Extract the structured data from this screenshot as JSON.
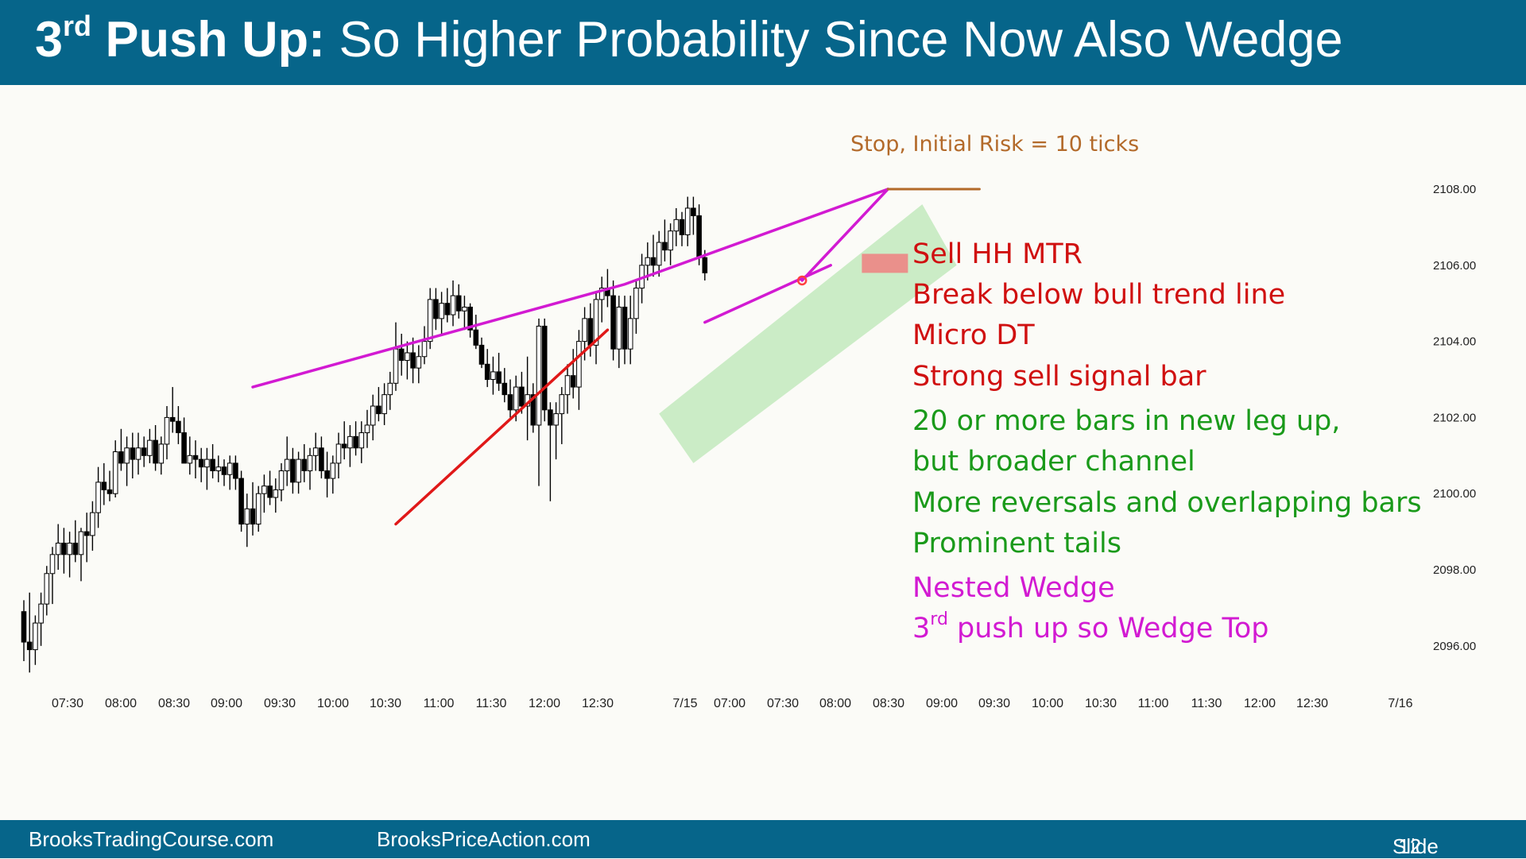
{
  "header": {
    "title_bold": "3",
    "title_bold_sup": "rd",
    "title_bold_rest": " Push Up:",
    "title_rest": " So Higher Probability Since Now Also Wedge"
  },
  "footer": {
    "left": "BrooksTradingCourse.com",
    "middle": "BrooksPriceAction.com",
    "slide_label": "Slide",
    "slide_number": "12"
  },
  "annotations": {
    "stop": "Stop, Initial Risk = 10 ticks",
    "red": [
      "Sell HH MTR",
      "Break below bull trend line",
      "Micro DT",
      "Strong sell signal bar"
    ],
    "green": [
      "20 or more bars in new leg up,",
      "but broader channel",
      "More reversals and overlapping bars",
      "Prominent tails"
    ],
    "magenta_1": "Nested Wedge",
    "magenta_2_pre": "3",
    "magenta_2_sup": "rd",
    "magenta_2_rest": " push up so Wedge Top"
  },
  "chart_data": {
    "type": "candlestick",
    "y_axis": {
      "ticks": [
        "2108.00",
        "2106.00",
        "2104.00",
        "2102.00",
        "2100.00",
        "2098.00",
        "2096.00"
      ],
      "range": [
        2094.5,
        2109.5
      ],
      "side": "right"
    },
    "x_axis": {
      "ticks": [
        "07:30",
        "08:00",
        "08:30",
        "09:00",
        "09:30",
        "10:00",
        "10:30",
        "11:00",
        "11:30",
        "12:00",
        "12:30",
        "7/15",
        "07:00",
        "07:30",
        "08:00",
        "08:30",
        "09:00",
        "09:30",
        "10:00",
        "10:30",
        "11:00",
        "11:30",
        "12:00",
        "12:30",
        "7/16"
      ]
    },
    "colors": {
      "wedge_line": "#d21ad2",
      "trend_line": "#e01818",
      "channel": "#b6e6b0",
      "stop_line": "#b36a2a",
      "signal_bar": "#f08080"
    },
    "candles": [
      [
        2096.9,
        2097.2,
        2095.6,
        2096.1
      ],
      [
        2096.1,
        2097.4,
        2095.3,
        2095.9
      ],
      [
        2095.9,
        2096.8,
        2095.5,
        2096.6
      ],
      [
        2096.6,
        2097.4,
        2096.0,
        2097.1
      ],
      [
        2097.1,
        2098.1,
        2096.8,
        2097.9
      ],
      [
        2097.9,
        2098.6,
        2097.1,
        2098.4
      ],
      [
        2098.4,
        2099.2,
        2098.0,
        2098.7
      ],
      [
        2098.7,
        2099.1,
        2097.9,
        2098.4
      ],
      [
        2098.4,
        2099.0,
        2097.8,
        2098.7
      ],
      [
        2098.7,
        2099.3,
        2098.2,
        2098.4
      ],
      [
        2098.4,
        2099.1,
        2097.7,
        2099.0
      ],
      [
        2099.0,
        2099.5,
        2098.2,
        2098.9
      ],
      [
        2098.9,
        2099.8,
        2098.5,
        2099.5
      ],
      [
        2099.5,
        2100.7,
        2099.1,
        2100.3
      ],
      [
        2100.3,
        2100.8,
        2099.7,
        2100.1
      ],
      [
        2100.1,
        2100.6,
        2099.8,
        2100.0
      ],
      [
        2100.0,
        2101.4,
        2099.9,
        2101.1
      ],
      [
        2101.1,
        2101.7,
        2100.6,
        2100.8
      ],
      [
        2100.8,
        2101.5,
        2100.2,
        2101.2
      ],
      [
        2101.2,
        2101.6,
        2100.4,
        2100.9
      ],
      [
        2100.9,
        2101.6,
        2100.5,
        2101.2
      ],
      [
        2101.2,
        2101.5,
        2100.7,
        2101.0
      ],
      [
        2101.0,
        2101.7,
        2100.8,
        2101.4
      ],
      [
        2101.4,
        2101.8,
        2100.6,
        2100.8
      ],
      [
        2100.8,
        2101.5,
        2100.5,
        2101.3
      ],
      [
        2101.3,
        2102.3,
        2100.9,
        2102.0
      ],
      [
        2102.0,
        2102.8,
        2101.6,
        2101.9
      ],
      [
        2101.9,
        2102.3,
        2101.3,
        2101.6
      ],
      [
        2101.6,
        2102.0,
        2100.9,
        2100.8
      ],
      [
        2100.8,
        2101.5,
        2100.5,
        2101.0
      ],
      [
        2101.0,
        2101.4,
        2100.4,
        2100.9
      ],
      [
        2100.9,
        2101.2,
        2100.3,
        2100.7
      ],
      [
        2100.7,
        2101.2,
        2100.1,
        2100.9
      ],
      [
        2100.9,
        2101.3,
        2100.4,
        2100.6
      ],
      [
        2100.6,
        2101.0,
        2100.3,
        2100.7
      ],
      [
        2100.7,
        2100.9,
        2100.2,
        2100.5
      ],
      [
        2100.5,
        2101.0,
        2100.1,
        2100.8
      ],
      [
        2100.8,
        2101.0,
        2100.1,
        2100.4
      ],
      [
        2100.4,
        2100.6,
        2099.0,
        2099.2
      ],
      [
        2099.2,
        2100.0,
        2098.6,
        2099.6
      ],
      [
        2099.6,
        2100.3,
        2098.9,
        2099.2
      ],
      [
        2099.2,
        2100.2,
        2099.0,
        2100.0
      ],
      [
        2100.0,
        2100.5,
        2099.5,
        2100.2
      ],
      [
        2100.2,
        2100.6,
        2099.7,
        2099.9
      ],
      [
        2099.9,
        2100.4,
        2099.5,
        2100.1
      ],
      [
        2100.1,
        2100.8,
        2099.8,
        2100.6
      ],
      [
        2100.6,
        2101.5,
        2100.2,
        2100.9
      ],
      [
        2100.9,
        2101.2,
        2100.0,
        2100.3
      ],
      [
        2100.3,
        2101.1,
        2100.0,
        2100.9
      ],
      [
        2100.9,
        2101.3,
        2100.3,
        2100.6
      ],
      [
        2100.6,
        2101.2,
        2100.1,
        2101.0
      ],
      [
        2101.0,
        2101.6,
        2100.6,
        2101.2
      ],
      [
        2101.2,
        2101.5,
        2100.4,
        2100.6
      ],
      [
        2100.6,
        2101.1,
        2099.9,
        2100.4
      ],
      [
        2100.4,
        2101.0,
        2100.0,
        2100.8
      ],
      [
        2100.8,
        2101.6,
        2100.4,
        2101.3
      ],
      [
        2101.3,
        2101.9,
        2100.9,
        2101.2
      ],
      [
        2101.2,
        2101.8,
        2100.7,
        2101.5
      ],
      [
        2101.5,
        2101.9,
        2101.0,
        2101.2
      ],
      [
        2101.2,
        2101.9,
        2100.8,
        2101.6
      ],
      [
        2101.6,
        2102.2,
        2101.2,
        2101.8
      ],
      [
        2101.8,
        2102.6,
        2101.4,
        2102.3
      ],
      [
        2102.3,
        2102.8,
        2101.9,
        2102.1
      ],
      [
        2102.1,
        2102.9,
        2101.8,
        2102.6
      ],
      [
        2102.6,
        2103.2,
        2102.2,
        2102.9
      ],
      [
        2102.9,
        2104.5,
        2102.7,
        2103.8
      ],
      [
        2103.8,
        2104.2,
        2103.1,
        2103.5
      ],
      [
        2103.5,
        2104.0,
        2103.0,
        2103.7
      ],
      [
        2103.7,
        2104.1,
        2102.9,
        2103.3
      ],
      [
        2103.3,
        2103.9,
        2102.9,
        2103.6
      ],
      [
        2103.6,
        2104.4,
        2103.4,
        2104.0
      ],
      [
        2104.0,
        2105.4,
        2103.8,
        2105.1
      ],
      [
        2105.1,
        2105.4,
        2104.3,
        2104.6
      ],
      [
        2104.6,
        2105.3,
        2104.2,
        2105.0
      ],
      [
        2105.0,
        2105.4,
        2104.5,
        2104.7
      ],
      [
        2104.7,
        2105.6,
        2104.4,
        2105.2
      ],
      [
        2105.2,
        2105.5,
        2104.6,
        2104.8
      ],
      [
        2104.8,
        2105.2,
        2104.3,
        2104.9
      ],
      [
        2104.9,
        2105.0,
        2104.1,
        2104.3
      ],
      [
        2104.3,
        2104.7,
        2103.8,
        2103.9
      ],
      [
        2103.9,
        2104.1,
        2103.3,
        2103.4
      ],
      [
        2103.4,
        2103.8,
        2102.8,
        2103.0
      ],
      [
        2103.0,
        2103.6,
        2102.6,
        2103.2
      ],
      [
        2103.2,
        2103.7,
        2102.7,
        2102.9
      ],
      [
        2102.9,
        2103.3,
        2102.4,
        2102.6
      ],
      [
        2102.6,
        2103.0,
        2102.0,
        2102.2
      ],
      [
        2102.2,
        2103.1,
        2101.9,
        2102.8
      ],
      [
        2102.8,
        2103.2,
        2102.1,
        2102.3
      ],
      [
        2102.3,
        2103.6,
        2101.4,
        2102.6
      ],
      [
        2102.6,
        2102.9,
        2101.6,
        2101.8
      ],
      [
        2101.8,
        2104.6,
        2100.2,
        2104.4
      ],
      [
        2104.4,
        2104.6,
        2101.9,
        2102.2
      ],
      [
        2102.2,
        2102.4,
        2099.8,
        2101.8
      ],
      [
        2101.8,
        2102.4,
        2100.9,
        2102.1
      ],
      [
        2102.1,
        2102.8,
        2101.3,
        2102.6
      ],
      [
        2102.6,
        2103.4,
        2102.1,
        2103.1
      ],
      [
        2103.1,
        2103.8,
        2102.5,
        2102.8
      ],
      [
        2102.8,
        2104.3,
        2102.2,
        2104.0
      ],
      [
        2104.0,
        2104.9,
        2103.5,
        2104.6
      ],
      [
        2104.6,
        2105.0,
        2103.6,
        2103.9
      ],
      [
        2103.9,
        2105.3,
        2103.4,
        2105.1
      ],
      [
        2105.1,
        2105.7,
        2104.5,
        2105.4
      ],
      [
        2105.4,
        2105.9,
        2104.9,
        2105.2
      ],
      [
        2105.2,
        2105.6,
        2103.5,
        2103.8
      ],
      [
        2103.8,
        2105.2,
        2103.3,
        2104.9
      ],
      [
        2104.9,
        2105.2,
        2103.4,
        2103.8
      ],
      [
        2103.8,
        2105.2,
        2103.4,
        2104.6
      ],
      [
        2104.6,
        2105.6,
        2104.2,
        2105.4
      ],
      [
        2105.4,
        2106.3,
        2105.0,
        2106.0
      ],
      [
        2106.0,
        2106.6,
        2105.6,
        2106.2
      ],
      [
        2106.2,
        2106.8,
        2105.7,
        2106.0
      ],
      [
        2106.0,
        2106.9,
        2105.7,
        2106.6
      ],
      [
        2106.6,
        2107.2,
        2106.1,
        2106.4
      ],
      [
        2106.4,
        2107.1,
        2106.0,
        2106.9
      ],
      [
        2106.9,
        2107.5,
        2106.5,
        2107.2
      ],
      [
        2107.2,
        2107.4,
        2106.5,
        2106.8
      ],
      [
        2106.8,
        2107.8,
        2106.5,
        2107.5
      ],
      [
        2107.5,
        2107.8,
        2106.8,
        2107.3
      ],
      [
        2107.3,
        2107.6,
        2106.0,
        2106.2
      ],
      [
        2106.2,
        2106.4,
        2105.6,
        2105.8
      ]
    ],
    "lines": {
      "wedge_big": [
        [
          40,
          2102.8
        ],
        [
          105,
          2105.5
        ],
        [
          151,
          2108.0
        ]
      ],
      "nested_wedge": [
        [
          119,
          2104.5
        ],
        [
          141,
          2106.0
        ]
      ],
      "nested_wedge_2": [
        [
          136,
          2105.6
        ],
        [
          151,
          2108.0
        ]
      ],
      "trend_line": [
        [
          65,
          2099.2
        ],
        [
          102,
          2104.3
        ]
      ],
      "stop": [
        [
          151,
          2108.0
        ],
        [
          167,
          2108.0
        ]
      ]
    },
    "channel": [
      [
        111,
        2102.1
      ],
      [
        117,
        2100.8
      ],
      [
        163,
        2106.0
      ],
      [
        157,
        2107.6
      ]
    ],
    "marker": [
      136,
      2105.6
    ],
    "signal_bar": [
      147,
      2105.8,
      2106.3
    ]
  }
}
